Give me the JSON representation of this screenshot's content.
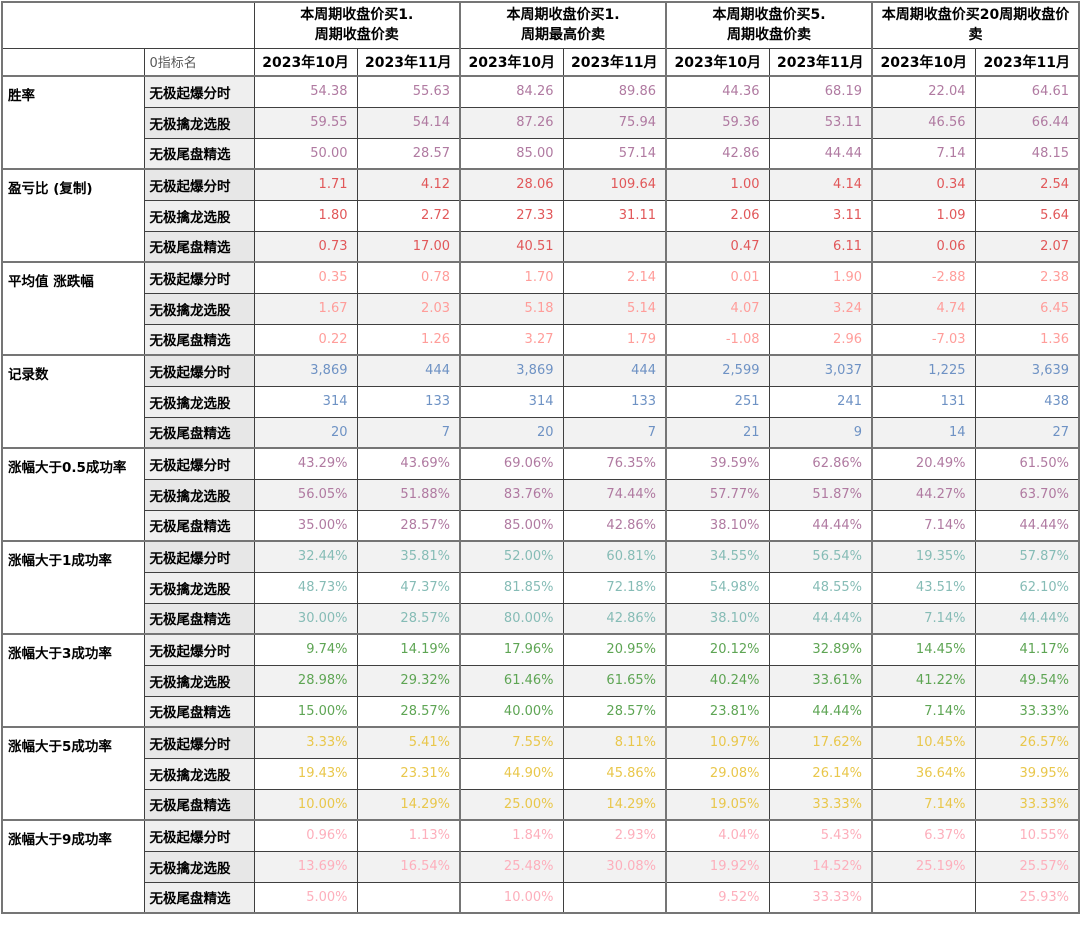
{
  "chart_data": {
    "type": "table",
    "corner_label": "0指标名",
    "column_groups": [
      {
        "title": "本周期收盘价买1.\n周期收盘价卖",
        "months": [
          "2023年10月",
          "2023年11月"
        ]
      },
      {
        "title": "本周期收盘价买1.\n周期最高价卖",
        "months": [
          "2023年10月",
          "2023年11月"
        ]
      },
      {
        "title": "本周期收盘价买5.\n周期收盘价卖",
        "months": [
          "2023年10月",
          "2023年11月"
        ]
      },
      {
        "title": "本周期收盘价买20周期收盘价卖",
        "months": [
          "2023年10月",
          "2023年11月"
        ]
      }
    ],
    "sections": [
      {
        "metric": "胜率",
        "value_color": "#b07aa1",
        "rows": [
          {
            "indicator": "无极起爆分时",
            "values": [
              "54.38",
              "55.63",
              "84.26",
              "89.86",
              "44.36",
              "68.19",
              "22.04",
              "64.61"
            ]
          },
          {
            "indicator": "无极擒龙选股",
            "values": [
              "59.55",
              "54.14",
              "87.26",
              "75.94",
              "59.36",
              "53.11",
              "46.56",
              "66.44"
            ]
          },
          {
            "indicator": "无极尾盘精选",
            "values": [
              "50.00",
              "28.57",
              "85.00",
              "57.14",
              "42.86",
              "44.44",
              "7.14",
              "48.15"
            ]
          }
        ]
      },
      {
        "metric": "盈亏比 (复制)",
        "value_color": "#e15759",
        "rows": [
          {
            "indicator": "无极起爆分时",
            "values": [
              "1.71",
              "4.12",
              "28.06",
              "109.64",
              "1.00",
              "4.14",
              "0.34",
              "2.54"
            ]
          },
          {
            "indicator": "无极擒龙选股",
            "values": [
              "1.80",
              "2.72",
              "27.33",
              "31.11",
              "2.06",
              "3.11",
              "1.09",
              "5.64"
            ]
          },
          {
            "indicator": "无极尾盘精选",
            "values": [
              "0.73",
              "17.00",
              "40.51",
              "",
              "0.47",
              "6.11",
              "0.06",
              "2.07"
            ]
          }
        ]
      },
      {
        "metric": "平均值 涨跌幅",
        "value_color": "#ff9d9a",
        "rows": [
          {
            "indicator": "无极起爆分时",
            "values": [
              "0.35",
              "0.78",
              "1.70",
              "2.14",
              "0.01",
              "1.90",
              "-2.88",
              "2.38"
            ]
          },
          {
            "indicator": "无极擒龙选股",
            "values": [
              "1.67",
              "2.03",
              "5.18",
              "5.14",
              "4.07",
              "3.24",
              "4.74",
              "6.45"
            ]
          },
          {
            "indicator": "无极尾盘精选",
            "values": [
              "0.22",
              "1.26",
              "3.27",
              "1.79",
              "-1.08",
              "2.96",
              "-7.03",
              "1.36"
            ]
          }
        ]
      },
      {
        "metric": "记录数",
        "value_color": "#6e92c4",
        "rows": [
          {
            "indicator": "无极起爆分时",
            "values": [
              "3,869",
              "444",
              "3,869",
              "444",
              "2,599",
              "3,037",
              "1,225",
              "3,639"
            ]
          },
          {
            "indicator": "无极擒龙选股",
            "values": [
              "314",
              "133",
              "314",
              "133",
              "251",
              "241",
              "131",
              "438"
            ]
          },
          {
            "indicator": "无极尾盘精选",
            "values": [
              "20",
              "7",
              "20",
              "7",
              "21",
              "9",
              "14",
              "27"
            ]
          }
        ]
      },
      {
        "metric": "涨幅大于0.5成功率",
        "value_color": "#b07aa1",
        "rows": [
          {
            "indicator": "无极起爆分时",
            "values": [
              "43.29%",
              "43.69%",
              "69.06%",
              "76.35%",
              "39.59%",
              "62.86%",
              "20.49%",
              "61.50%"
            ]
          },
          {
            "indicator": "无极擒龙选股",
            "values": [
              "56.05%",
              "51.88%",
              "83.76%",
              "74.44%",
              "57.77%",
              "51.87%",
              "44.27%",
              "63.70%"
            ]
          },
          {
            "indicator": "无极尾盘精选",
            "values": [
              "35.00%",
              "28.57%",
              "85.00%",
              "42.86%",
              "38.10%",
              "44.44%",
              "7.14%",
              "44.44%"
            ]
          }
        ]
      },
      {
        "metric": "涨幅大于1成功率",
        "value_color": "#86bcb6",
        "rows": [
          {
            "indicator": "无极起爆分时",
            "values": [
              "32.44%",
              "35.81%",
              "52.00%",
              "60.81%",
              "34.55%",
              "56.54%",
              "19.35%",
              "57.87%"
            ]
          },
          {
            "indicator": "无极擒龙选股",
            "values": [
              "48.73%",
              "47.37%",
              "81.85%",
              "72.18%",
              "54.98%",
              "48.55%",
              "43.51%",
              "62.10%"
            ]
          },
          {
            "indicator": "无极尾盘精选",
            "values": [
              "30.00%",
              "28.57%",
              "80.00%",
              "42.86%",
              "38.10%",
              "44.44%",
              "7.14%",
              "44.44%"
            ]
          }
        ]
      },
      {
        "metric": "涨幅大于3成功率",
        "value_color": "#5ea554",
        "rows": [
          {
            "indicator": "无极起爆分时",
            "values": [
              "9.74%",
              "14.19%",
              "17.96%",
              "20.95%",
              "20.12%",
              "32.89%",
              "14.45%",
              "41.17%"
            ]
          },
          {
            "indicator": "无极擒龙选股",
            "values": [
              "28.98%",
              "29.32%",
              "61.46%",
              "61.65%",
              "40.24%",
              "33.61%",
              "41.22%",
              "49.54%"
            ]
          },
          {
            "indicator": "无极尾盘精选",
            "values": [
              "15.00%",
              "28.57%",
              "40.00%",
              "28.57%",
              "23.81%",
              "44.44%",
              "7.14%",
              "33.33%"
            ]
          }
        ]
      },
      {
        "metric": "涨幅大于5成功率",
        "value_color": "#e9c74b",
        "rows": [
          {
            "indicator": "无极起爆分时",
            "values": [
              "3.33%",
              "5.41%",
              "7.55%",
              "8.11%",
              "10.97%",
              "17.62%",
              "10.45%",
              "26.57%"
            ]
          },
          {
            "indicator": "无极擒龙选股",
            "values": [
              "19.43%",
              "23.31%",
              "44.90%",
              "45.86%",
              "29.08%",
              "26.14%",
              "36.64%",
              "39.95%"
            ]
          },
          {
            "indicator": "无极尾盘精选",
            "values": [
              "10.00%",
              "14.29%",
              "25.00%",
              "14.29%",
              "19.05%",
              "33.33%",
              "7.14%",
              "33.33%"
            ]
          }
        ]
      },
      {
        "metric": "涨幅大于9成功率",
        "value_color": "#fdafbc",
        "rows": [
          {
            "indicator": "无极起爆分时",
            "values": [
              "0.96%",
              "1.13%",
              "1.84%",
              "2.93%",
              "4.04%",
              "5.43%",
              "6.37%",
              "10.55%"
            ]
          },
          {
            "indicator": "无极擒龙选股",
            "values": [
              "13.69%",
              "16.54%",
              "25.48%",
              "30.08%",
              "19.92%",
              "14.52%",
              "25.19%",
              "25.57%"
            ]
          },
          {
            "indicator": "无极尾盘精选",
            "values": [
              "5.00%",
              "",
              "10.00%",
              "",
              "9.52%",
              "33.33%",
              "",
              "25.93%"
            ]
          }
        ]
      }
    ],
    "layout": {
      "banding_color": "#f2f2f2",
      "indicator_column_bg": "#efefef",
      "thin_border_color": "#3f3f3f",
      "thick_border_color": "#757575"
    }
  }
}
